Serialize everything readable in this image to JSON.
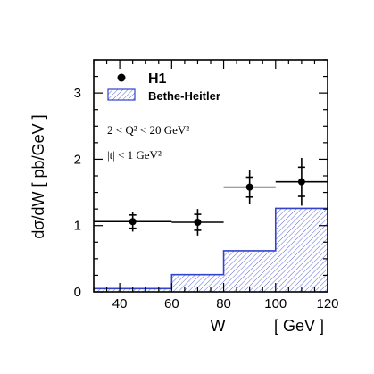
{
  "chart_data": {
    "type": "scatter",
    "xlabel": "W",
    "xunit": "[ GeV ]",
    "ylabel": "dσ/dW  [ pb/GeV ]",
    "xlim": [
      30,
      120
    ],
    "ylim": [
      0,
      3.5
    ],
    "xticks": [
      "40",
      "60",
      "80",
      "100",
      "120"
    ],
    "yticks": [
      "0",
      "1",
      "2",
      "3"
    ],
    "series": [
      {
        "name": "H1",
        "kind": "points",
        "points": [
          {
            "x": 45,
            "y": 1.06,
            "xlo": 30,
            "xhi": 60,
            "ystat": 0.1,
            "ytot": 0.15
          },
          {
            "x": 70,
            "y": 1.05,
            "xlo": 60,
            "xhi": 80,
            "ystat": 0.12,
            "ytot": 0.2
          },
          {
            "x": 90,
            "y": 1.58,
            "xlo": 80,
            "xhi": 100,
            "ystat": 0.15,
            "ytot": 0.25
          },
          {
            "x": 110,
            "y": 1.66,
            "xlo": 100,
            "xhi": 120,
            "ystat": 0.22,
            "ytot": 0.36
          }
        ]
      },
      {
        "name": "Bethe-Heitler",
        "kind": "histogram",
        "color": "#3344cc",
        "bins": [
          {
            "lo": 30,
            "hi": 60,
            "y": 0.05
          },
          {
            "lo": 60,
            "hi": 80,
            "y": 0.26
          },
          {
            "lo": 80,
            "hi": 100,
            "y": 0.62
          },
          {
            "lo": 100,
            "hi": 120,
            "y": 1.26
          }
        ]
      }
    ],
    "legend": {
      "placement": "top-left",
      "items": [
        {
          "label": "H1",
          "marker": "dot"
        },
        {
          "label": "Bethe-Heitler",
          "marker": "hatched-box"
        }
      ]
    },
    "annotations": [
      {
        "text": "2 < Q² < 20 GeV²"
      },
      {
        "text": "|t| < 1 GeV²"
      }
    ]
  }
}
